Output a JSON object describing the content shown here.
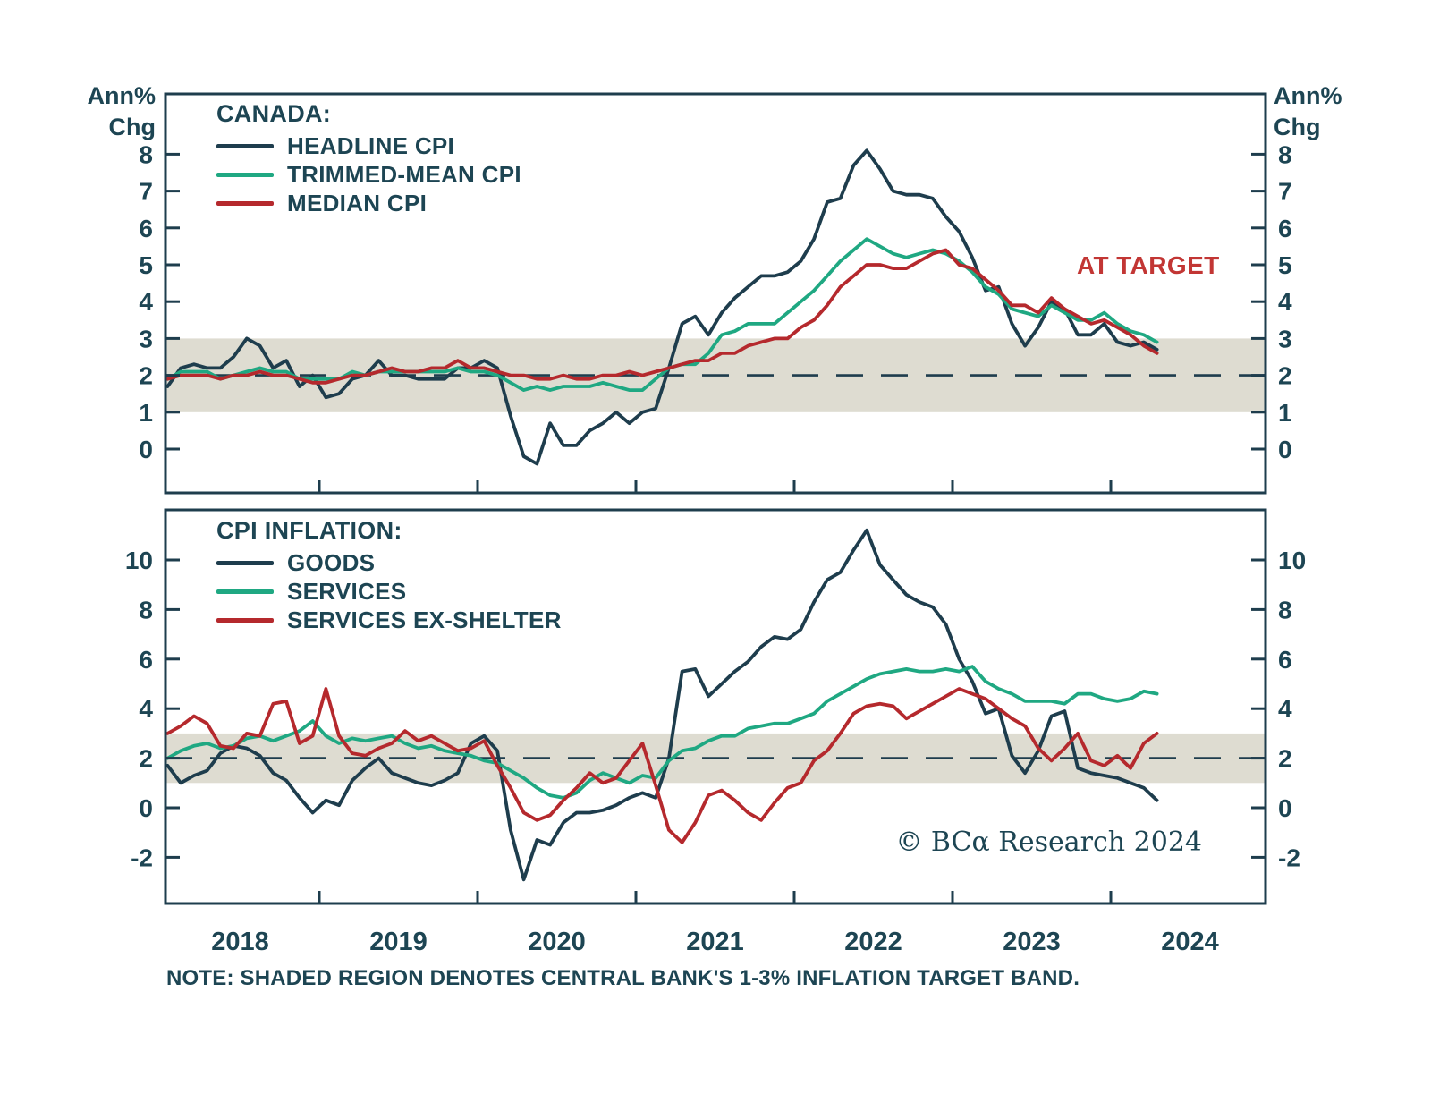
{
  "page": {
    "background": "#ffffff"
  },
  "colors": {
    "ink": "#1d4553",
    "frame": "#1e3d4d",
    "band": "#dedcd1",
    "navy": "#1e3d4d",
    "green": "#1fa882",
    "red": "#b5292d",
    "annotation_red": "#c23634"
  },
  "axis_labels": {
    "unit_line1": "Ann%",
    "unit_line2": "Chg"
  },
  "footer": {
    "note": "NOTE: SHADED REGION DENOTES CENTRAL BANK'S 1-3% INFLATION TARGET BAND.",
    "copyright": "© BCα Research 2024"
  },
  "chart_data": [
    {
      "type": "line",
      "panel": "top",
      "legend_title": "CANADA:",
      "legend_position": "top-left",
      "annotation": "AT TARGET",
      "unit_label": "Ann% Chg",
      "grid": false,
      "x_start": "2018-01",
      "x_end": "2024-04",
      "x_frequency": "monthly",
      "x_tick_years": [
        2018,
        2019,
        2020,
        2021,
        2022,
        2023,
        2024
      ],
      "y_ticks": [
        8,
        7,
        6,
        5,
        4,
        3,
        2,
        1,
        0
      ],
      "ylim": [
        -1.2,
        9.6
      ],
      "target_band": [
        1,
        3
      ],
      "target_line": 2,
      "series": [
        {
          "name": "HEADLINE CPI",
          "color": "#1e3d4d",
          "values": [
            1.7,
            2.2,
            2.3,
            2.2,
            2.2,
            2.5,
            3.0,
            2.8,
            2.2,
            2.4,
            1.7,
            2.0,
            1.4,
            1.5,
            1.9,
            2.0,
            2.4,
            2.0,
            2.0,
            1.9,
            1.9,
            1.9,
            2.2,
            2.2,
            2.4,
            2.2,
            0.9,
            -0.2,
            -0.4,
            0.7,
            0.1,
            0.1,
            0.5,
            0.7,
            1.0,
            0.7,
            1.0,
            1.1,
            2.2,
            3.4,
            3.6,
            3.1,
            3.7,
            4.1,
            4.4,
            4.7,
            4.7,
            4.8,
            5.1,
            5.7,
            6.7,
            6.8,
            7.7,
            8.1,
            7.6,
            7.0,
            6.9,
            6.9,
            6.8,
            6.3,
            5.9,
            5.2,
            4.3,
            4.4,
            3.4,
            2.8,
            3.3,
            4.0,
            3.8,
            3.1,
            3.1,
            3.4,
            2.9,
            2.8,
            2.9,
            2.7
          ]
        },
        {
          "name": "TRIMMED-MEAN CPI",
          "color": "#1fa882",
          "values": [
            1.9,
            2.1,
            2.1,
            2.1,
            1.9,
            2.0,
            2.1,
            2.2,
            2.1,
            2.1,
            1.9,
            1.9,
            1.9,
            1.9,
            2.1,
            2.0,
            2.1,
            2.1,
            2.1,
            2.1,
            2.1,
            2.1,
            2.2,
            2.1,
            2.1,
            2.0,
            1.8,
            1.6,
            1.7,
            1.6,
            1.7,
            1.7,
            1.7,
            1.8,
            1.7,
            1.6,
            1.6,
            1.9,
            2.2,
            2.3,
            2.3,
            2.6,
            3.1,
            3.2,
            3.4,
            3.4,
            3.4,
            3.7,
            4.0,
            4.3,
            4.7,
            5.1,
            5.4,
            5.7,
            5.5,
            5.3,
            5.2,
            5.3,
            5.4,
            5.3,
            5.1,
            4.8,
            4.4,
            4.2,
            3.8,
            3.7,
            3.6,
            3.9,
            3.7,
            3.5,
            3.5,
            3.7,
            3.4,
            3.2,
            3.1,
            2.9
          ]
        },
        {
          "name": "MEDIAN CPI",
          "color": "#b5292d",
          "values": [
            1.9,
            2.0,
            2.0,
            2.0,
            1.9,
            2.0,
            2.0,
            2.1,
            2.0,
            2.0,
            1.9,
            1.8,
            1.8,
            1.9,
            2.0,
            2.0,
            2.1,
            2.2,
            2.1,
            2.1,
            2.2,
            2.2,
            2.4,
            2.2,
            2.2,
            2.1,
            2.0,
            2.0,
            1.9,
            1.9,
            2.0,
            1.9,
            1.9,
            2.0,
            2.0,
            2.1,
            2.0,
            2.1,
            2.2,
            2.3,
            2.4,
            2.4,
            2.6,
            2.6,
            2.8,
            2.9,
            3.0,
            3.0,
            3.3,
            3.5,
            3.9,
            4.4,
            4.7,
            5.0,
            5.0,
            4.9,
            4.9,
            5.1,
            5.3,
            5.4,
            5.0,
            4.9,
            4.6,
            4.3,
            3.9,
            3.9,
            3.7,
            4.1,
            3.8,
            3.6,
            3.4,
            3.5,
            3.3,
            3.1,
            2.8,
            2.6
          ]
        }
      ]
    },
    {
      "type": "line",
      "panel": "bottom",
      "legend_title": "CPI INFLATION:",
      "legend_position": "top-left",
      "annotation": "",
      "unit_label": "Ann% Chg",
      "grid": false,
      "x_start": "2018-01",
      "x_end": "2024-04",
      "x_frequency": "monthly",
      "x_tick_years": [
        2018,
        2019,
        2020,
        2021,
        2022,
        2023,
        2024
      ],
      "y_ticks": [
        10,
        8,
        6,
        4,
        2,
        0,
        -2
      ],
      "ylim": [
        -3.9,
        12.0
      ],
      "target_band": [
        1,
        3
      ],
      "target_line": 2,
      "series": [
        {
          "name": "GOODS",
          "color": "#1e3d4d",
          "values": [
            1.7,
            1.0,
            1.3,
            1.5,
            2.2,
            2.5,
            2.4,
            2.1,
            1.4,
            1.1,
            0.4,
            -0.2,
            0.3,
            0.1,
            1.1,
            1.6,
            2.0,
            1.4,
            1.2,
            1.0,
            0.9,
            1.1,
            1.4,
            2.6,
            2.9,
            2.3,
            -0.9,
            -2.9,
            -1.3,
            -1.5,
            -0.6,
            -0.2,
            -0.2,
            -0.1,
            0.1,
            0.4,
            0.6,
            0.4,
            2.0,
            5.5,
            5.6,
            4.5,
            5.0,
            5.5,
            5.9,
            6.5,
            6.9,
            6.8,
            7.2,
            8.3,
            9.2,
            9.5,
            10.4,
            11.2,
            9.8,
            9.2,
            8.6,
            8.3,
            8.1,
            7.4,
            6.0,
            5.1,
            3.8,
            4.0,
            2.1,
            1.4,
            2.3,
            3.7,
            3.9,
            1.6,
            1.4,
            1.3,
            1.2,
            1.0,
            0.8,
            0.3
          ]
        },
        {
          "name": "SERVICES",
          "color": "#1fa882",
          "values": [
            2.0,
            2.3,
            2.5,
            2.6,
            2.4,
            2.5,
            2.8,
            2.9,
            2.7,
            2.9,
            3.1,
            3.5,
            2.9,
            2.6,
            2.8,
            2.7,
            2.8,
            2.9,
            2.6,
            2.4,
            2.5,
            2.3,
            2.2,
            2.1,
            1.9,
            1.8,
            1.5,
            1.2,
            0.8,
            0.5,
            0.4,
            0.6,
            1.1,
            1.4,
            1.2,
            1.0,
            1.3,
            1.2,
            1.9,
            2.3,
            2.4,
            2.7,
            2.9,
            2.9,
            3.2,
            3.3,
            3.4,
            3.4,
            3.6,
            3.8,
            4.3,
            4.6,
            4.9,
            5.2,
            5.4,
            5.5,
            5.6,
            5.5,
            5.5,
            5.6,
            5.5,
            5.7,
            5.1,
            4.8,
            4.6,
            4.3,
            4.3,
            4.3,
            4.2,
            4.6,
            4.6,
            4.4,
            4.3,
            4.4,
            4.7,
            4.6
          ]
        },
        {
          "name": "SERVICES EX-SHELTER",
          "color": "#b5292d",
          "values": [
            3.0,
            3.3,
            3.7,
            3.4,
            2.5,
            2.4,
            3.0,
            2.9,
            4.2,
            4.3,
            2.6,
            2.9,
            4.8,
            2.9,
            2.2,
            2.1,
            2.4,
            2.6,
            3.1,
            2.7,
            2.9,
            2.6,
            2.3,
            2.4,
            2.7,
            1.7,
            0.8,
            -0.2,
            -0.5,
            -0.3,
            0.3,
            0.8,
            1.4,
            1.0,
            1.2,
            1.9,
            2.6,
            0.9,
            -0.9,
            -1.4,
            -0.6,
            0.5,
            0.7,
            0.3,
            -0.2,
            -0.5,
            0.2,
            0.8,
            1.0,
            1.9,
            2.3,
            3.0,
            3.8,
            4.1,
            4.2,
            4.1,
            3.6,
            3.9,
            4.2,
            4.5,
            4.8,
            4.6,
            4.4,
            4.0,
            3.6,
            3.3,
            2.4,
            1.9,
            2.4,
            3.0,
            1.9,
            1.7,
            2.1,
            1.6,
            2.6,
            3.0
          ]
        }
      ]
    }
  ]
}
